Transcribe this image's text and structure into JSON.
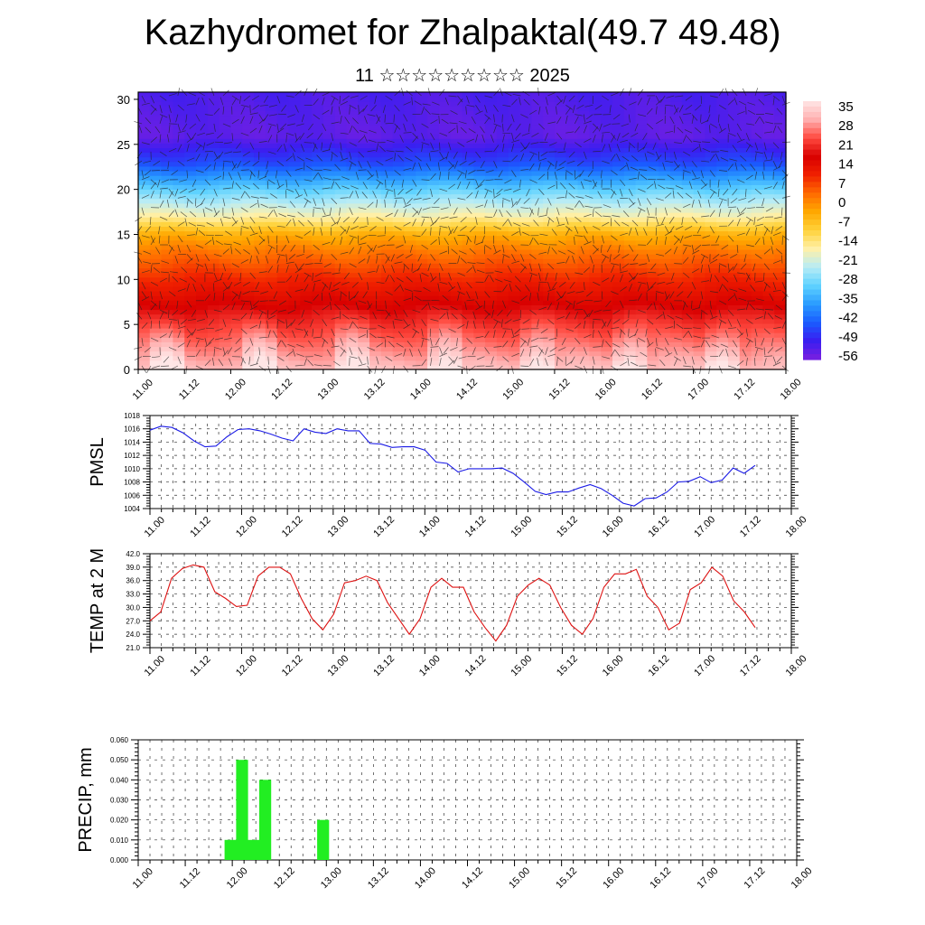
{
  "title": "Kazhydromet for Zhalpaktal(49.7 49.48)",
  "subtitle": "11 ☆☆☆☆☆☆☆☆☆ 2025",
  "chart_data": [
    {
      "type": "heatmap",
      "name": "upper-air temperature and wind cross-section",
      "xticks": [
        "11.00",
        "11.12",
        "12.00",
        "12.12",
        "13.00",
        "13.12",
        "14.00",
        "14.12",
        "15.00",
        "15.12",
        "16.00",
        "16.12",
        "17.00",
        "17.12",
        "18.00"
      ],
      "yticks": [
        0,
        5,
        10,
        15,
        20,
        25,
        30
      ],
      "ylim": [
        0,
        30.8
      ],
      "colorbar_labels": [
        "35",
        "28",
        "21",
        "14",
        "7",
        "0",
        "-7",
        "-14",
        "-21",
        "-28",
        "-35",
        "-42",
        "-49",
        "-56"
      ],
      "colormap": [
        "#7a1fe0",
        "#3a1ef0",
        "#1a5cff",
        "#2a9cff",
        "#5fd2ff",
        "#b8ecf5",
        "#fff0a8",
        "#ffd23a",
        "#ffa800",
        "#ff6a00",
        "#f02000",
        "#d80000",
        "#ff4a40",
        "#ffb0b0",
        "#ffe6e6"
      ],
      "levels": [
        {
          "height": 0,
          "temp": 33
        },
        {
          "height": 5,
          "temp": 22
        },
        {
          "height": 10,
          "temp": 10
        },
        {
          "height": 13,
          "temp": 2
        },
        {
          "height": 15,
          "temp": -5
        },
        {
          "height": 17,
          "temp": -18
        },
        {
          "height": 20,
          "temp": -32
        },
        {
          "height": 23,
          "temp": -48
        },
        {
          "height": 26,
          "temp": -57
        },
        {
          "height": 30.8,
          "temp": -55
        }
      ],
      "grid": false,
      "wind_barbs": true
    },
    {
      "type": "line",
      "ylabel": "PMSL",
      "ylim": [
        1004,
        1018
      ],
      "yticks": [
        "1004",
        "1006",
        "1008",
        "1010",
        "1012",
        "1014",
        "1016",
        "1018"
      ],
      "xticks": [
        "11.00",
        "11.12",
        "12.00",
        "12.12",
        "13.00",
        "13.12",
        "14.00",
        "14.12",
        "15.00",
        "15.12",
        "16.00",
        "16.12",
        "17.00",
        "17.12",
        "18.00"
      ],
      "color": "#1a1ae6",
      "grid": true,
      "values": [
        1015.8,
        1016.4,
        1016.2,
        1015.4,
        1014.2,
        1013.3,
        1013.4,
        1014.8,
        1015.9,
        1016.0,
        1015.7,
        1015.2,
        1014.6,
        1014.2,
        1016.0,
        1015.5,
        1015.3,
        1016.0,
        1015.7,
        1015.7,
        1013.8,
        1013.7,
        1013.2,
        1013.3,
        1013.3,
        1012.8,
        1011.0,
        1010.8,
        1009.5,
        1010.0,
        1010.0,
        1010.0,
        1010.1,
        1009.3,
        1008.0,
        1006.6,
        1006.1,
        1006.5,
        1006.5,
        1007.1,
        1007.6,
        1007.0,
        1006.0,
        1004.8,
        1004.4,
        1005.5,
        1005.6,
        1006.5,
        1008.0,
        1008.1,
        1008.8,
        1007.9,
        1008.3,
        1010.1,
        1009.3,
        1010.5
      ]
    },
    {
      "type": "line",
      "ylabel": "TEMP at 2 M",
      "ylim": [
        21,
        42
      ],
      "yticks": [
        "21.0",
        "24.0",
        "27.0",
        "30.0",
        "33.0",
        "36.0",
        "39.0",
        "42.0"
      ],
      "xticks": [
        "11.00",
        "11.12",
        "12.00",
        "12.12",
        "13.00",
        "13.12",
        "14.00",
        "14.12",
        "15.00",
        "15.12",
        "16.00",
        "16.12",
        "17.00",
        "17.12",
        "18.00"
      ],
      "color": "#dd1111",
      "grid": true,
      "values": [
        27.0,
        29.0,
        36.5,
        38.7,
        39.5,
        39.0,
        33.5,
        32.0,
        30.2,
        30.5,
        37.0,
        39.0,
        39.0,
        37.5,
        32.0,
        27.5,
        25.0,
        28.5,
        35.5,
        36.0,
        37.0,
        36.0,
        31.0,
        27.5,
        24.0,
        27.5,
        34.5,
        36.5,
        34.5,
        34.5,
        29.0,
        25.5,
        22.5,
        26.0,
        32.5,
        35.0,
        36.5,
        35.0,
        30.0,
        26.0,
        24.0,
        27.5,
        34.5,
        37.5,
        37.5,
        38.5,
        32.5,
        30.0,
        25.0,
        26.5,
        34.0,
        35.5,
        39.0,
        37.0,
        31.5,
        29.0,
        25.5
      ]
    },
    {
      "type": "bar",
      "ylabel": "PRECIP, mm",
      "ylim": [
        0,
        0.06
      ],
      "yticks": [
        "0.000",
        "0.010",
        "0.020",
        "0.030",
        "0.040",
        "0.050",
        "0.060"
      ],
      "xticks": [
        "11.00",
        "11.12",
        "12.00",
        "12.12",
        "13.00",
        "13.12",
        "14.00",
        "14.12",
        "15.00",
        "15.12",
        "16.00",
        "16.12",
        "17.00",
        "17.12",
        "18.00"
      ],
      "color": "#22ee22",
      "grid": true,
      "bars": [
        {
          "t": 7.5,
          "value": 0.01
        },
        {
          "t": 8.5,
          "value": 0.05
        },
        {
          "t": 9.5,
          "value": 0.01
        },
        {
          "t": 10.5,
          "value": 0.04
        },
        {
          "t": 15.5,
          "value": 0.02
        }
      ]
    }
  ]
}
